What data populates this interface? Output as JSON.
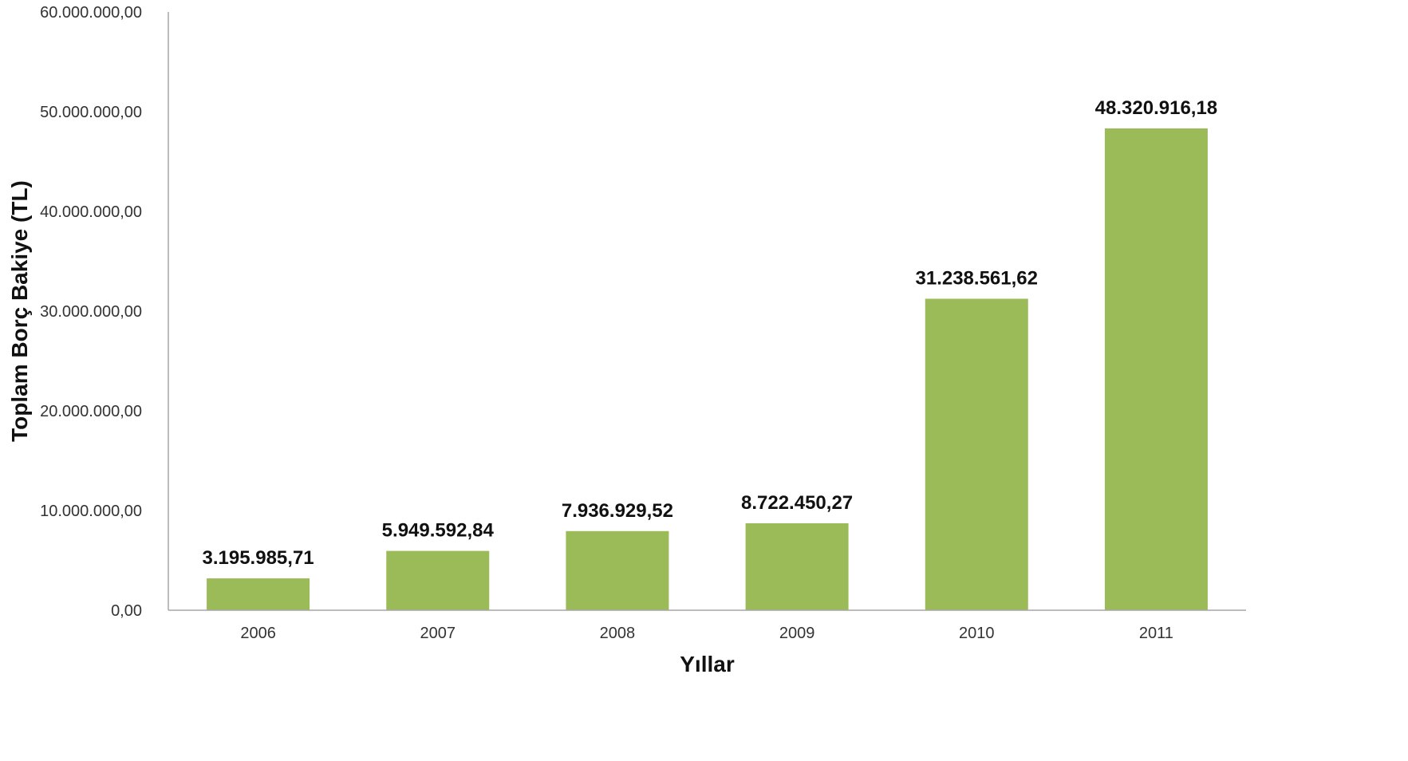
{
  "chart_data": {
    "type": "bar",
    "title": "",
    "xlabel": "Yıllar",
    "ylabel": "Toplam Borç Bakiye (TL)",
    "categories": [
      "2006",
      "2007",
      "2008",
      "2009",
      "2010",
      "2011"
    ],
    "values": [
      3195985.71,
      5949592.84,
      7936929.52,
      8722450.27,
      31238561.62,
      48320916.18
    ],
    "value_labels": [
      "3.195.985,71",
      "5.949.592,84",
      "7.936.929,52",
      "8.722.450,27",
      "31.238.561,62",
      "48.320.916,18"
    ],
    "ylim": [
      0,
      60000000
    ],
    "y_ticks": [
      0,
      10000000,
      20000000,
      30000000,
      40000000,
      50000000,
      60000000
    ],
    "y_tick_labels": [
      "0,00",
      "10.000.000,00",
      "20.000.000,00",
      "30.000.000,00",
      "40.000.000,00",
      "50.000.000,00",
      "60.000.000,00"
    ],
    "grid": false,
    "legend": "none",
    "bar_color": "#9BBB59",
    "axis_color": "#A6A6A6"
  }
}
